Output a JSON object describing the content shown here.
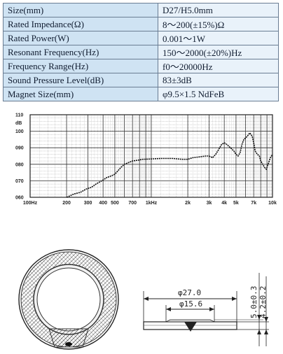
{
  "specs": [
    {
      "label": "Size(mm)",
      "value": "D27/H5.0mm"
    },
    {
      "label": "Rated Impedance(Ω)",
      "value": "8～200(±15%)Ω"
    },
    {
      "label": "Rated Power(W)",
      "value": "0.001～1W"
    },
    {
      "label": "Resonant Frequency(Hz)",
      "value": "150～2000(±20%)Hz"
    },
    {
      "label": "Frequency Range(Hz)",
      "value": "f0～20000Hz"
    },
    {
      "label": "Sound Pressure Level(dB)",
      "value": "83±3dB"
    },
    {
      "label": "Magnet Size(mm)",
      "value": "φ9.5×1.5 NdFeB"
    }
  ],
  "chart_data": {
    "type": "line",
    "xscale": "log",
    "xlim": [
      100,
      10000
    ],
    "ylim": [
      60,
      110
    ],
    "grid": true,
    "y_unit": "dB",
    "y_ticks": [
      "110",
      "100",
      "090",
      "080",
      "070",
      "060"
    ],
    "x_ticks": [
      "100Hz",
      "200",
      "300",
      "400",
      "500",
      "700",
      "1kHz",
      "2k",
      "3k",
      "4k",
      "5k",
      "7k",
      "10k"
    ],
    "series": [
      {
        "x": [
          200,
          230,
          260,
          290,
          320,
          350,
          390,
          430,
          470,
          500,
          530,
          560,
          600,
          650,
          700,
          780,
          850,
          1000,
          1200,
          1500,
          1800,
          2000,
          2200,
          2500,
          2800,
          3000,
          3200,
          3400,
          3600,
          3800,
          4000,
          4200,
          4500,
          4800,
          5000,
          5200,
          5400,
          5600,
          5800,
          6000,
          6200,
          6500,
          6800,
          7000,
          7200,
          7500,
          7800,
          8000,
          8300,
          8600,
          8900,
          9200,
          9600,
          10000
        ],
        "y": [
          60,
          62,
          63,
          65,
          66,
          68,
          70,
          72,
          73,
          74,
          76,
          78,
          80,
          81,
          82,
          82.5,
          83,
          83.2,
          83.5,
          83.5,
          83,
          83,
          84,
          84.5,
          85,
          85,
          84,
          86,
          89,
          92,
          93,
          92,
          90,
          88,
          86,
          85,
          87,
          92,
          95,
          96,
          97,
          99,
          97,
          93,
          88,
          86,
          85,
          82,
          80,
          78,
          77,
          80,
          84,
          86
        ]
      }
    ]
  },
  "drawing": {
    "dim_outer": "φ27.0",
    "dim_magnet": "φ15.6",
    "dim_height_total": "5.0±0.3",
    "dim_height_body": "4.2±0.2"
  }
}
